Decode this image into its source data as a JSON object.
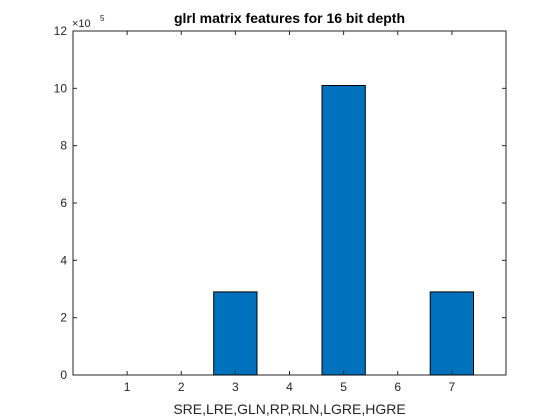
{
  "chart_data": {
    "type": "bar",
    "title": "glrl matrix features for 16 bit depth",
    "xlabel": "SRE,LRE,GLN,RP,RLN,LGRE,HGRE",
    "ylabel": "",
    "categories": [
      "1",
      "2",
      "3",
      "4",
      "5",
      "6",
      "7"
    ],
    "x": [
      1,
      2,
      3,
      4,
      5,
      6,
      7
    ],
    "values": [
      0,
      0,
      290000,
      0,
      1010000,
      0,
      290000
    ],
    "xlim": [
      0,
      8
    ],
    "ylim": [
      0,
      1200000
    ],
    "y_ticks": [
      "0",
      "2",
      "4",
      "6",
      "8",
      "10",
      "12"
    ],
    "y_multiplier": {
      "base": "×10",
      "exponent": "5"
    },
    "bar_color": "#0072BD",
    "grid": false,
    "legend": "none"
  }
}
